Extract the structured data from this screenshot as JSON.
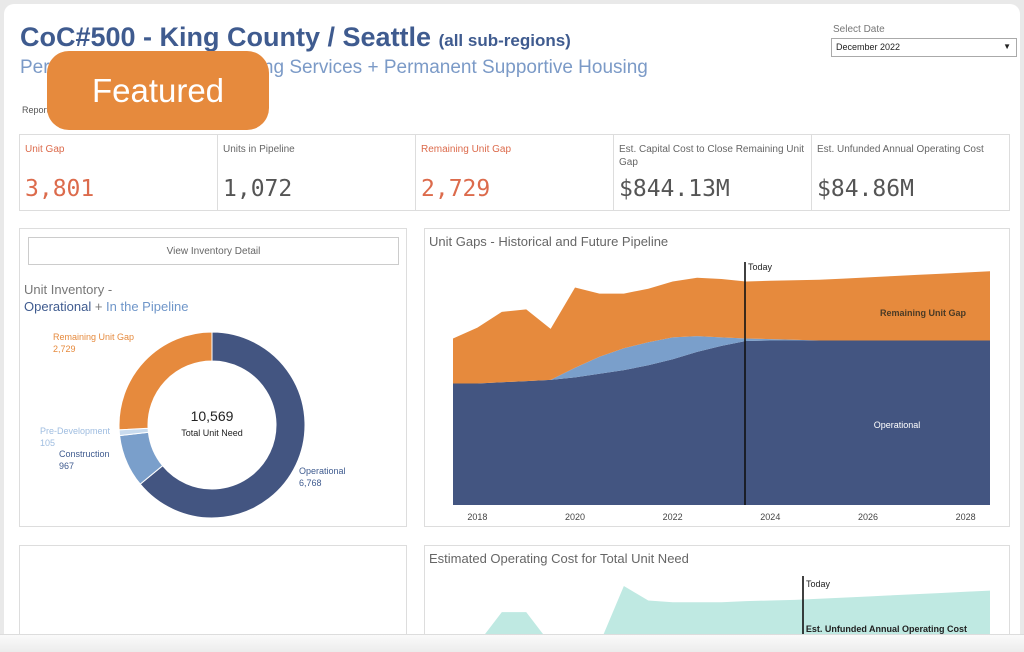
{
  "header": {
    "title": "CoC#500 - King County / Seattle",
    "title_sub": "(all sub-regions)",
    "subtitle": "Permanent Supportive Housing Services + Permanent Supportive Housing",
    "report_text": "Report"
  },
  "badge": {
    "label": "Featured"
  },
  "date_filter": {
    "label": "Select Date",
    "value": "December 2022"
  },
  "kpis": [
    {
      "label": "Unit Gap",
      "value": "3,801",
      "color": "#dc6b4c"
    },
    {
      "label": "Units in Pipeline",
      "value": "1,072",
      "color": "#555555"
    },
    {
      "label": "Remaining Unit Gap",
      "value": "2,729",
      "color": "#dc6b4c"
    },
    {
      "label": "Est. Capital Cost to Close Remaining Unit Gap",
      "value": "$844.13M",
      "color": "#555555"
    },
    {
      "label": "Est. Unfunded Annual Operating Cost",
      "value": "$84.86M",
      "color": "#555555"
    }
  ],
  "inventory": {
    "button_label": "View Inventory Detail",
    "title_line1": "Unit Inventory -",
    "title_operational": "Operational",
    "title_plus": " + ",
    "title_pipeline": "In the Pipeline",
    "center_value": "10,569",
    "center_label": "Total Unit Need",
    "labels": {
      "remaining_name": "Remaining Unit Gap",
      "remaining_value": "2,729",
      "predev_name": "Pre-Development",
      "predev_value": "105",
      "construction_name": "Construction",
      "construction_value": "967",
      "operational_name": "Operational",
      "operational_value": "6,768"
    }
  },
  "gaps_chart": {
    "title": "Unit Gaps - Historical and Future Pipeline",
    "today_label": "Today",
    "remaining_label": "Remaining Unit Gap",
    "operational_label": "Operational"
  },
  "opcost_chart": {
    "title": "Estimated Operating Cost for Total Unit Need",
    "today_label": "Today",
    "series_label": "Est. Unfunded Annual Operating Cost"
  },
  "colors": {
    "operational": "#435581",
    "pipeline": "#7a9fcb",
    "predev": "#c9dbee",
    "gap": "#e68a3d",
    "teal": "#bfe9e2",
    "title_blue": "#3f5b8f"
  },
  "chart_data": [
    {
      "type": "pie",
      "title": "Unit Inventory - Operational + In the Pipeline",
      "labels": [
        "Operational",
        "Construction",
        "Pre-Development",
        "Remaining Unit Gap"
      ],
      "values": [
        6768,
        967,
        105,
        2729
      ],
      "total": 10569
    },
    {
      "type": "area",
      "title": "Unit Gaps - Historical and Future Pipeline",
      "x": [
        2017.5,
        2018.0,
        2018.5,
        2019.0,
        2019.5,
        2020.0,
        2020.5,
        2021.0,
        2021.5,
        2022.0,
        2022.5,
        2023.0,
        2023.5,
        2024.0,
        2024.5,
        2025.0,
        2025.5,
        2026.0,
        2026.5,
        2027.0,
        2027.5,
        2028.0,
        2028.5
      ],
      "xticks": [
        2018,
        2020,
        2022,
        2024,
        2026,
        2028
      ],
      "today": 2023.6,
      "series": [
        {
          "name": "Operational",
          "values": [
            5000,
            5000,
            5050,
            5100,
            5150,
            5250,
            5400,
            5550,
            5750,
            6000,
            6300,
            6550,
            6750,
            6768,
            6768,
            6768,
            6768,
            6768,
            6768,
            6768,
            6768,
            6768,
            6768
          ]
        },
        {
          "name": "Pipeline",
          "values": [
            0,
            0,
            0,
            0,
            0,
            400,
            700,
            900,
            950,
            900,
            650,
            350,
            100,
            60,
            30,
            0,
            0,
            0,
            0,
            0,
            0,
            0,
            0
          ]
        },
        {
          "name": "Remaining Unit Gap",
          "values": [
            1850,
            2300,
            2900,
            2950,
            2100,
            3300,
            2600,
            2250,
            2200,
            2300,
            2400,
            2400,
            2350,
            2400,
            2450,
            2500,
            2550,
            2600,
            2650,
            2700,
            2750,
            2800,
            2850
          ]
        }
      ]
    },
    {
      "type": "area",
      "title": "Estimated Operating Cost for Total Unit Need",
      "x": [
        2017.5,
        2018.0,
        2018.5,
        2019.0,
        2019.5,
        2020.0,
        2020.5,
        2021.0,
        2021.5,
        2022.0,
        2022.5,
        2023.0,
        2023.5,
        2024.0,
        2024.5,
        2025.0,
        2025.5,
        2026.0,
        2026.5,
        2027.0,
        2027.5,
        2028.0,
        2028.5
      ],
      "today": 2023.6,
      "series": [
        {
          "name": "Est. Unfunded Annual Operating Cost",
          "values": [
            0,
            0,
            0.55,
            0.55,
            0,
            0,
            0,
            1.0,
            0.75,
            0.72,
            0.72,
            0.72,
            0.74,
            0.75,
            0.76,
            0.78,
            0.8,
            0.82,
            0.84,
            0.86,
            0.88,
            0.9,
            0.92
          ]
        }
      ]
    }
  ]
}
